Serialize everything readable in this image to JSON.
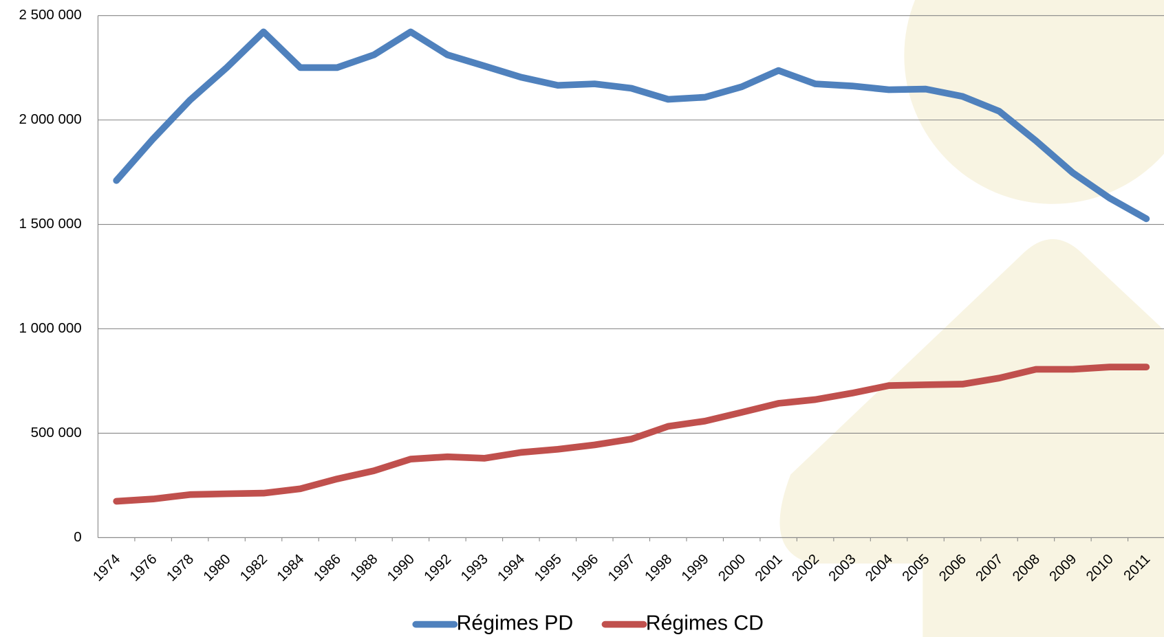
{
  "chart_data": {
    "type": "line",
    "categories": [
      "1974",
      "1976",
      "1978",
      "1980",
      "1982",
      "1984",
      "1986",
      "1988",
      "1990",
      "1992",
      "1993",
      "1994",
      "1995",
      "1996",
      "1997",
      "1998",
      "1999",
      "2000",
      "2001",
      "2002",
      "2003",
      "2004",
      "2005",
      "2006",
      "2007",
      "2008",
      "2009",
      "2010",
      "2011"
    ],
    "series": [
      {
        "name": "Régimes PD",
        "color": "#4f81bd",
        "values": [
          1710000,
          1910000,
          2095000,
          2251000,
          2422000,
          2251000,
          2251000,
          2312000,
          2422000,
          2312000,
          2259000,
          2205000,
          2166000,
          2173000,
          2152000,
          2099000,
          2109000,
          2159000,
          2237000,
          2173000,
          2163000,
          2145000,
          2148000,
          2113000,
          2042000,
          1900000,
          1747000,
          1626000,
          1527000
        ]
      },
      {
        "name": "Régimes CD",
        "color": "#c0504d",
        "values": [
          174000,
          185000,
          206000,
          210000,
          213000,
          234000,
          281000,
          320000,
          376000,
          387000,
          380000,
          408000,
          423000,
          444000,
          472000,
          533000,
          558000,
          600000,
          643000,
          661000,
          692000,
          728000,
          732000,
          735000,
          764000,
          806000,
          806000,
          817000,
          817000
        ]
      }
    ],
    "ylim": [
      0,
      2500000
    ],
    "yticks": [
      0,
      {
        "value": 500000,
        "label": "500 000"
      },
      {
        "value": 1000000,
        "label": "1 000 000"
      },
      {
        "value": 1500000,
        "label": "1 500 000"
      },
      {
        "value": 2000000,
        "label": "2 000 000"
      },
      {
        "value": 2500000,
        "label": "2 500 000"
      }
    ],
    "grid": true,
    "legend": "bottom"
  }
}
